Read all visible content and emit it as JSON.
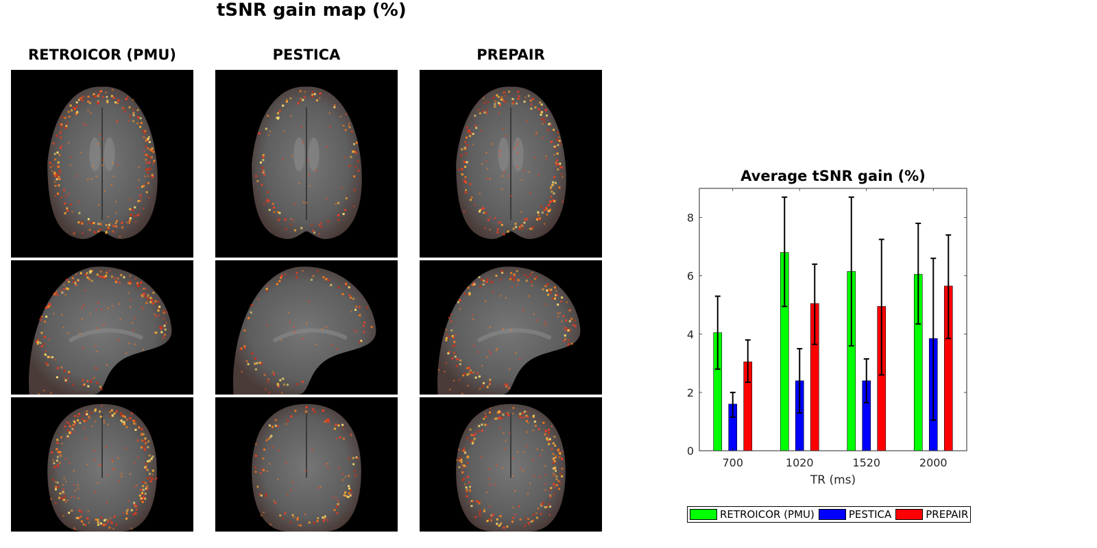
{
  "figure": {
    "title": "tSNR gain map (%)",
    "columns": [
      {
        "label": "RETROICOR (PMU)",
        "intensity": 1.0
      },
      {
        "label": "PESTICA",
        "intensity": 0.4
      },
      {
        "label": "PREPAIR",
        "intensity": 0.9
      }
    ],
    "rows": [
      "axial",
      "sagittal",
      "coronal"
    ]
  },
  "chart_data": {
    "type": "bar",
    "title": "Average tSNR gain (%)",
    "xlabel": "TR (ms)",
    "ylabel": "",
    "categories": [
      "700",
      "1020",
      "1520",
      "2000"
    ],
    "ylim": [
      0,
      9
    ],
    "yticks": [
      0,
      2,
      4,
      6,
      8
    ],
    "grid": false,
    "legend_position": "bottom",
    "series": [
      {
        "name": "RETROICOR (PMU)",
        "color": "#00ff00",
        "values": [
          4.05,
          6.8,
          6.15,
          6.05
        ],
        "error_low": [
          2.8,
          4.95,
          3.6,
          4.35
        ],
        "error_high": [
          5.3,
          8.7,
          8.7,
          7.8
        ]
      },
      {
        "name": "PESTICA",
        "color": "#0000ff",
        "values": [
          1.6,
          2.4,
          2.4,
          3.85
        ],
        "error_low": [
          1.15,
          1.3,
          1.65,
          1.05
        ],
        "error_high": [
          2.0,
          3.5,
          3.15,
          6.6
        ]
      },
      {
        "name": "PREPAIR",
        "color": "#ff0000",
        "values": [
          3.05,
          5.05,
          4.95,
          5.65
        ],
        "error_low": [
          2.35,
          3.65,
          2.6,
          3.85
        ],
        "error_high": [
          3.8,
          6.4,
          7.25,
          7.4
        ]
      }
    ]
  }
}
